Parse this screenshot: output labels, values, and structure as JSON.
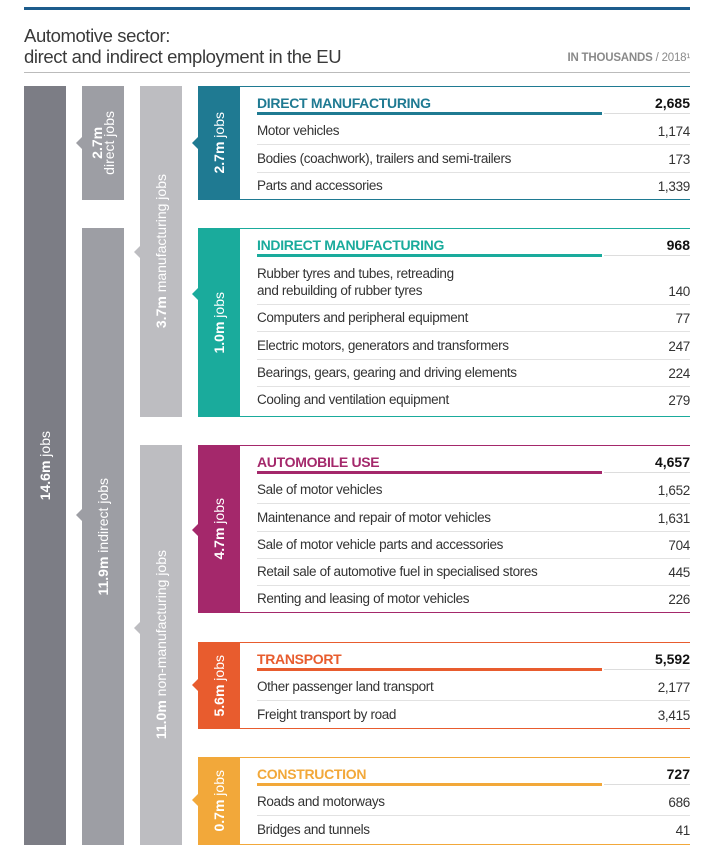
{
  "title_line1": "Automotive sector:",
  "title_line2": "direct and indirect employment in the EU",
  "units": "IN THOUSANDS",
  "year": "/ 2018¹",
  "colors": {
    "bar_total": "#7c7d85",
    "bar_level2": "#9d9ea4",
    "bar_level3": "#bdbdc1",
    "accent": "#1d5c8c"
  },
  "bars": {
    "total": {
      "bold": "14.6m",
      "rest": " jobs"
    },
    "direct": {
      "bold": "2.7m",
      "rest": "direct jobs"
    },
    "indirect": {
      "bold": "11.9m",
      "rest": " indirect jobs"
    },
    "manufacturing": {
      "bold": "3.7m",
      "rest": " manufacturing jobs"
    },
    "non_manufacturing": {
      "bold": "11.0m",
      "rest": " non-manufacturing jobs"
    }
  },
  "chart_data": {
    "type": "table",
    "title": "Automotive sector: direct and indirect employment in the EU",
    "units": "thousands",
    "sections": [
      {
        "name": "DIRECT MANUFACTURING",
        "tab_bold": "2.7m",
        "tab_rest": "jobs",
        "total": "2,685",
        "color": "#1f7a92",
        "rows": [
          {
            "label": "Motor vehicles",
            "value": "1,174"
          },
          {
            "label": "Bodies (coachwork), trailers and semi-trailers",
            "value": "173"
          },
          {
            "label": "Parts and accessories",
            "value": "1,339"
          }
        ]
      },
      {
        "name": "INDIRECT MANUFACTURING",
        "tab_bold": "1.0m",
        "tab_rest": "jobs",
        "total": "968",
        "color": "#1aab9c",
        "rows": [
          {
            "label": "Rubber tyres and tubes, retreading\nand rebuilding of rubber tyres",
            "value": "140"
          },
          {
            "label": "Computers and peripheral equipment",
            "value": "77"
          },
          {
            "label": "Electric motors, generators and transformers",
            "value": "247"
          },
          {
            "label": "Bearings, gears, gearing and driving elements",
            "value": "224"
          },
          {
            "label": "Cooling and ventilation equipment",
            "value": "279"
          }
        ]
      },
      {
        "name": "AUTOMOBILE USE",
        "tab_bold": "4.7m",
        "tab_rest": "jobs",
        "total": "4,657",
        "color": "#a4286b",
        "rows": [
          {
            "label": "Sale of motor vehicles",
            "value": "1,652"
          },
          {
            "label": "Maintenance and repair of motor vehicles",
            "value": "1,631"
          },
          {
            "label": "Sale of motor vehicle parts and accessories",
            "value": "704"
          },
          {
            "label": "Retail sale of automotive fuel in specialised stores",
            "value": "445"
          },
          {
            "label": "Renting and leasing of motor vehicles",
            "value": "226"
          }
        ]
      },
      {
        "name": "TRANSPORT",
        "tab_bold": "5.6m",
        "tab_rest": "jobs",
        "total": "5,592",
        "color": "#e85c2e",
        "rows": [
          {
            "label": "Other passenger land transport",
            "value": "2,177"
          },
          {
            "label": "Freight transport by road",
            "value": "3,415"
          }
        ]
      },
      {
        "name": "CONSTRUCTION",
        "tab_bold": "0.7m",
        "tab_rest": "jobs",
        "total": "727",
        "color": "#f2a83a",
        "rows": [
          {
            "label": "Roads and motorways",
            "value": "686"
          },
          {
            "label": "Bridges and tunnels",
            "value": "41"
          }
        ]
      }
    ]
  }
}
